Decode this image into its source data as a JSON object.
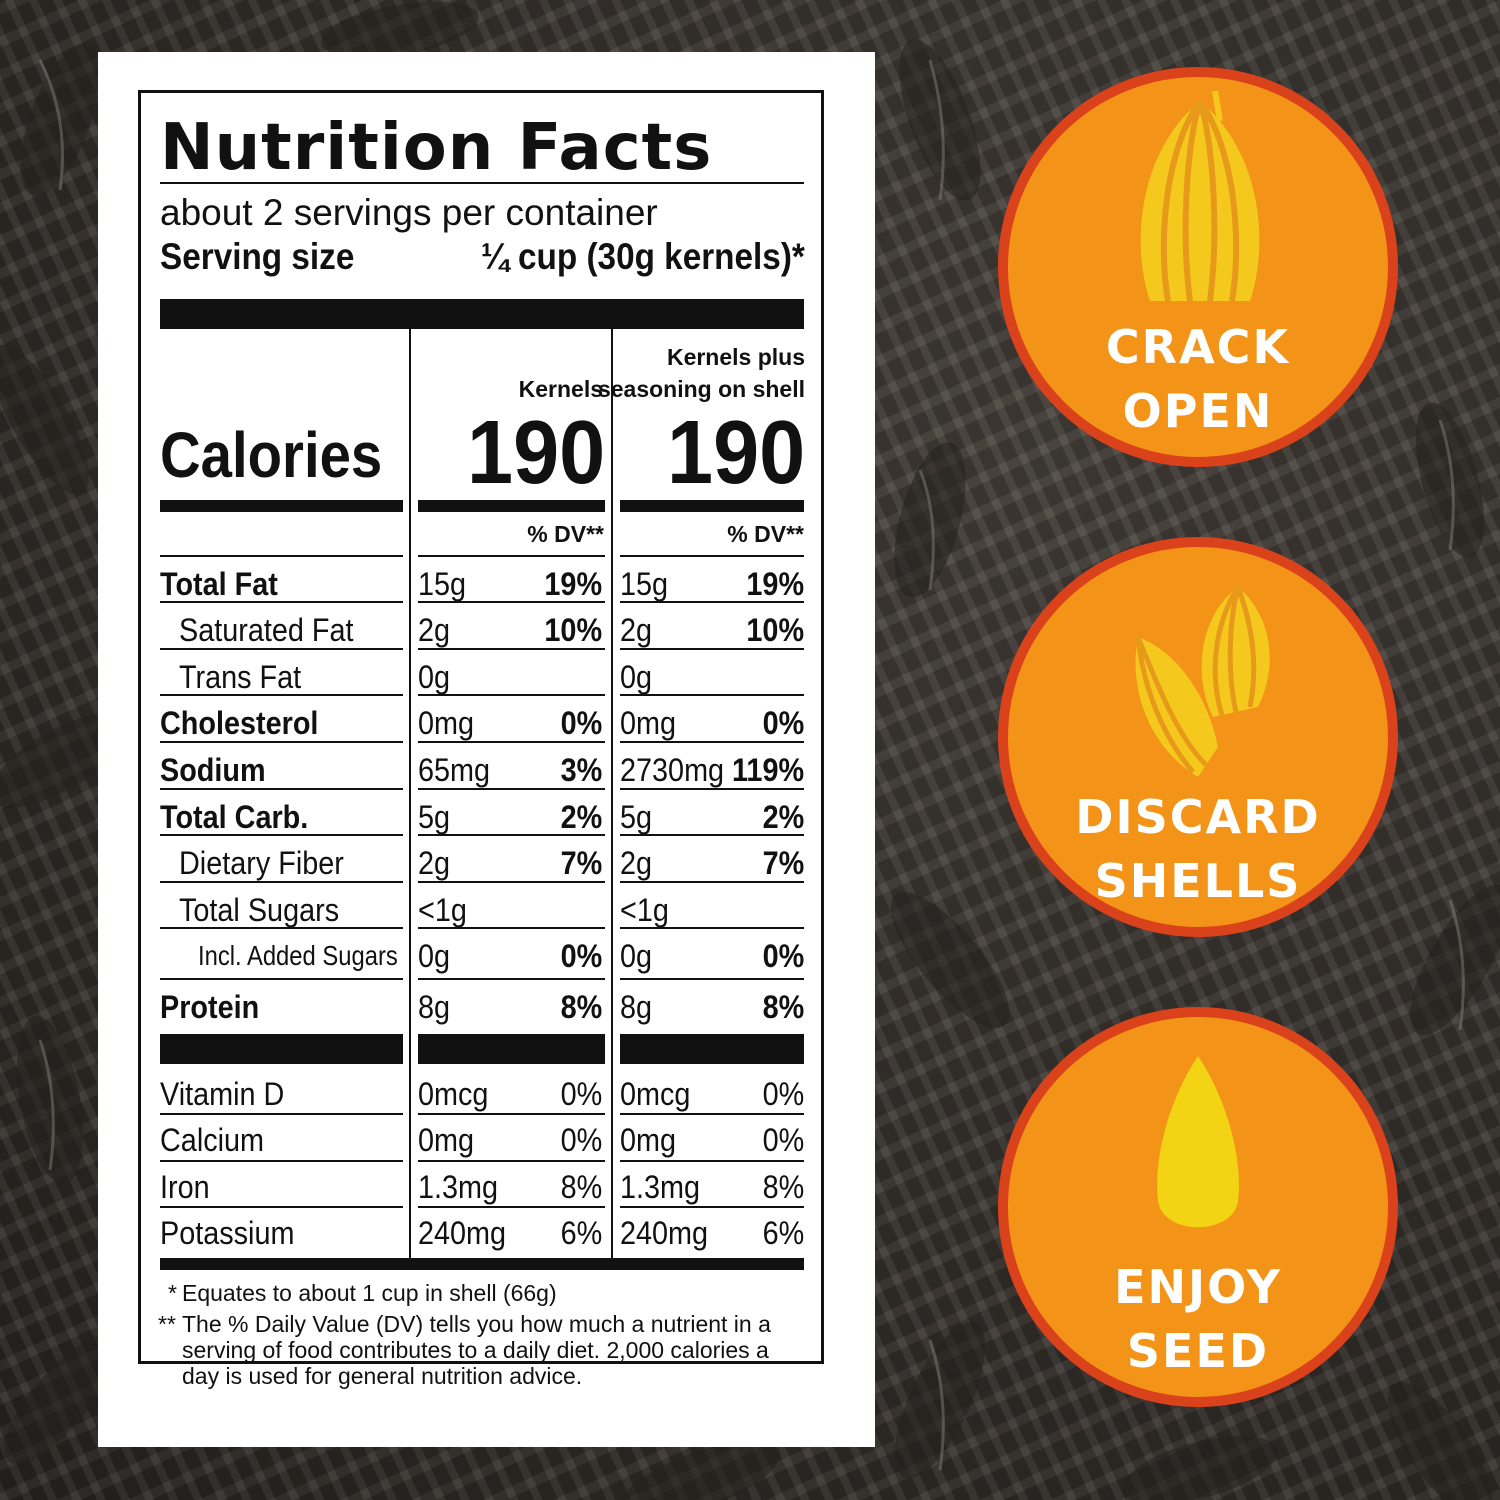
{
  "label": {
    "title": "Nutrition Facts",
    "servings": "about 2 servings per container",
    "serving_size_label": "Serving size",
    "serving_size_value": "¼ cup (30g kernels)*",
    "col1_header": "Kernels",
    "col2_header_line1": "Kernels plus",
    "col2_header_line2": "seasoning on shell",
    "calories_label": "Calories",
    "calories_col1": "190",
    "calories_col2": "190",
    "dv_header": "% DV**",
    "rows": [
      {
        "name": "Total Fat",
        "a1": "15g",
        "p1": "19%",
        "a2": "15g",
        "p2": "19%"
      },
      {
        "name": "Saturated Fat",
        "a1": "2g",
        "p1": "10%",
        "a2": "2g",
        "p2": "10%"
      },
      {
        "name": "Trans Fat",
        "a1": "0g",
        "p1": "",
        "a2": "0g",
        "p2": ""
      },
      {
        "name": "Cholesterol",
        "a1": "0mg",
        "p1": "0%",
        "a2": "0mg",
        "p2": "0%"
      },
      {
        "name": "Sodium",
        "a1": "65mg",
        "p1": "3%",
        "a2": "2730mg",
        "p2": "119%"
      },
      {
        "name": "Total Carb.",
        "a1": "5g",
        "p1": "2%",
        "a2": "5g",
        "p2": "2%"
      },
      {
        "name": "Dietary Fiber",
        "a1": "2g",
        "p1": "7%",
        "a2": "2g",
        "p2": "7%"
      },
      {
        "name": "Total Sugars",
        "a1": "<1g",
        "p1": "",
        "a2": "<1g",
        "p2": ""
      },
      {
        "name": "Incl. Added Sugars",
        "a1": "0g",
        "p1": "0%",
        "a2": "0g",
        "p2": "0%"
      },
      {
        "name": "Protein",
        "a1": "8g",
        "p1": "8%",
        "a2": "8g",
        "p2": "8%"
      }
    ],
    "vitamins": [
      {
        "name": "Vitamin D",
        "a1": "0mcg",
        "p1": "0%",
        "a2": "0mcg",
        "p2": "0%"
      },
      {
        "name": "Calcium",
        "a1": "0mg",
        "p1": "0%",
        "a2": "0mg",
        "p2": "0%"
      },
      {
        "name": "Iron",
        "a1": "1.3mg",
        "p1": "8%",
        "a2": "1.3mg",
        "p2": "8%"
      },
      {
        "name": "Potassium",
        "a1": "240mg",
        "p1": "6%",
        "a2": "240mg",
        "p2": "6%"
      }
    ],
    "footnote1_mark": "*",
    "footnote1": "Equates to about 1 cup in shell (66g)",
    "footnote2_mark": "**",
    "footnote2": "The % Daily Value (DV) tells you how much a nutrient in a serving of food contributes to a daily diet. 2,000 calories a day is used for general nutrition advice."
  },
  "steps": [
    {
      "line1": "CRACK",
      "line2": "OPEN",
      "icon": "seed-in-shell-icon"
    },
    {
      "line1": "DISCARD",
      "line2": "SHELLS",
      "icon": "two-shells-icon"
    },
    {
      "line1": "ENJOY",
      "line2": "SEED",
      "icon": "kernel-icon"
    }
  ],
  "colors": {
    "circle_fill": "#f39317",
    "circle_ring": "#d9421a",
    "icon_yellow": "#f5c81e",
    "text_white": "#ffffff"
  }
}
